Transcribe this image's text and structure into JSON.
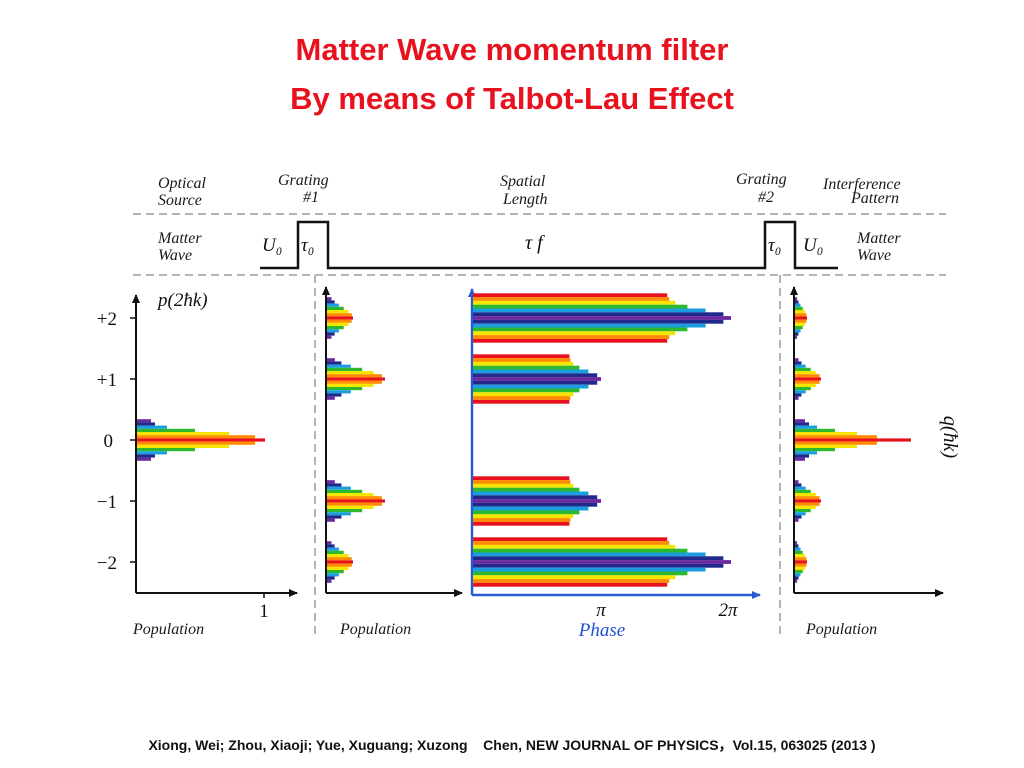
{
  "title": {
    "line1": "Matter Wave momentum filter",
    "line2": "By means of Talbot-Lau Effect"
  },
  "header_labels": {
    "optical_source": [
      "Optical",
      "Source"
    ],
    "grating1": [
      "Grating",
      "#1"
    ],
    "spatial_length": [
      "Spatial",
      "Length"
    ],
    "grating2": [
      "Grating",
      "#2"
    ],
    "interference_pattern": [
      "Interference",
      "Pattern"
    ],
    "matter_wave_left": [
      "Matter",
      "Wave"
    ],
    "matter_wave_right": [
      "Matter",
      "Wave"
    ]
  },
  "pulse_labels": {
    "u0_left": "U₀",
    "tau0_left": "τ₀",
    "tau_f": "τ f",
    "tau0_right": "τ₀",
    "u0_right": "U₀"
  },
  "panels": {
    "p1": {
      "ylabel": "p(2ħk)",
      "yticks": [
        "+2",
        "+1",
        "0",
        "−1",
        "−2"
      ],
      "xtick": "1",
      "xlabel": "Population"
    },
    "p2": {
      "xlabel": "Population"
    },
    "p3": {
      "xticks": [
        "π",
        "2π"
      ],
      "xlabel": "Phase"
    },
    "p4": {
      "ylabel": "q(ħk)",
      "xlabel": "Population"
    }
  },
  "colors": {
    "title": "#e8121f",
    "spectrum": [
      "#e8121f",
      "#ff8c00",
      "#f5e600",
      "#2eb82e",
      "#1a9ee0",
      "#1f2a8c",
      "#6a2a9e"
    ],
    "axis_blue": "#2a5bd7",
    "phase_label": "#1e4fd6",
    "dashed": "#b5b5b5"
  },
  "citation": "Xiong, Wei; Zhou, Xiaoji; Yue, Xuguang; Xuzong    Chen, NEW JOURNAL OF PHYSICS，Vol.15, 063025 (2013 )"
}
